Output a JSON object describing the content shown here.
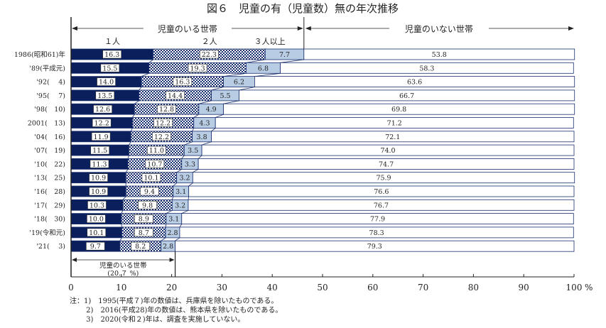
{
  "chart_data": {
    "type": "bar",
    "orientation": "horizontal-stacked-100",
    "title": "図６　児童の有（児童数）無の年次推移",
    "group_labels": {
      "with_children": "児童のいる世帯",
      "without_children": "児童のいない世帯"
    },
    "categories": [
      "1986(昭和61)年",
      "'89(平成元)",
      "'92(　 4)",
      "'95(　 7)",
      "'98(　10)",
      "2001(　13)",
      "'04(　16)",
      "'07(　19)",
      "'10(　22)",
      "'13(　25)",
      "'16(　28)",
      "'17(　29)",
      "'18(　30)",
      "'19(令和元)",
      "'21(　 3)"
    ],
    "series": [
      {
        "name": "１人",
        "color": "#0b1f5c",
        "values": [
          16.3,
          15.5,
          14.0,
          13.5,
          12.6,
          12.2,
          11.9,
          11.5,
          11.3,
          10.9,
          10.9,
          10.3,
          10.0,
          10.1,
          9.7
        ]
      },
      {
        "name": "２人",
        "color": "checkered",
        "values": [
          22.3,
          19.3,
          16.3,
          14.4,
          12.8,
          12.2,
          12.2,
          11.0,
          10.7,
          10.1,
          9.4,
          9.8,
          8.9,
          8.7,
          8.2
        ]
      },
      {
        "name": "３人以上",
        "color": "#b8cce4",
        "values": [
          7.7,
          6.8,
          6.2,
          5.5,
          4.9,
          4.3,
          3.8,
          3.5,
          3.3,
          3.2,
          3.1,
          3.2,
          3.1,
          2.8,
          2.8
        ]
      },
      {
        "name": "児童のいない世帯",
        "color": "#ffffff",
        "values": [
          53.8,
          58.3,
          63.6,
          66.7,
          69.8,
          71.2,
          72.1,
          74.0,
          74.7,
          75.9,
          76.6,
          76.7,
          77.9,
          78.3,
          79.3
        ]
      }
    ],
    "annotation": {
      "line1": "児童のいる世帯",
      "line2": "(20.７ %)",
      "value": 20.7
    },
    "xlim": [
      0,
      100
    ],
    "xticks": [
      "0",
      "10",
      "20",
      "30",
      "40",
      "50",
      "60",
      "70",
      "80",
      "90",
      "100"
    ],
    "x_unit": "%",
    "grid": false
  },
  "notes": [
    "注：1)　1995(平成７)年の数値は、兵庫県を除いたものである。",
    "　　 2)　2016(平成28)年の数値は、熊本県を除いたものである。",
    "　　 3)　2020(令和２)年は、調査を実施していない。"
  ]
}
